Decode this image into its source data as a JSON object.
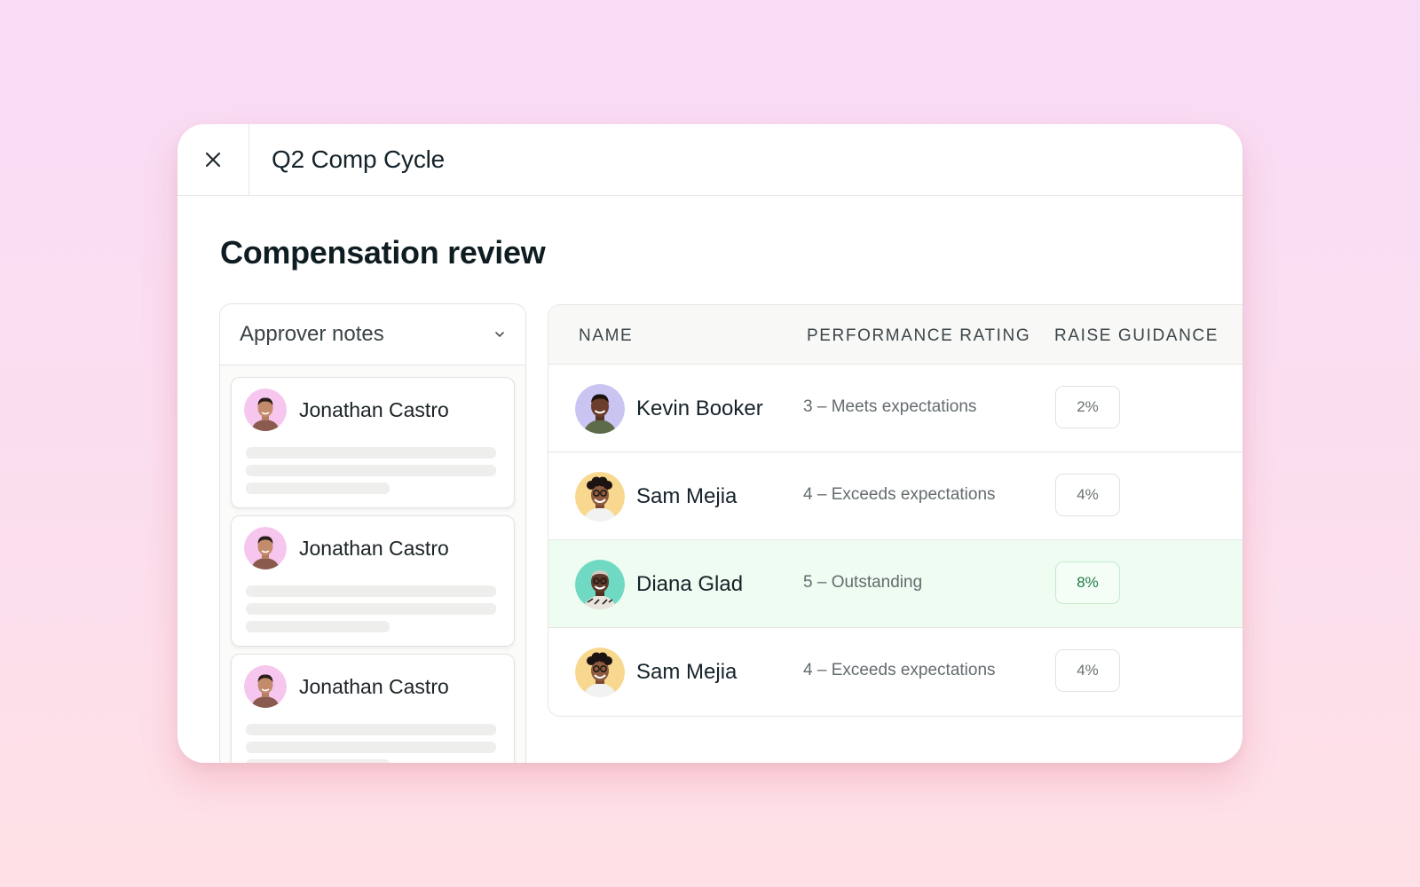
{
  "window": {
    "cycle_title": "Q2 Comp Cycle",
    "close_icon": "close-icon"
  },
  "page": {
    "title": "Compensation review"
  },
  "notes": {
    "header_label": "Approver notes",
    "header_icon": "chevron-down-icon",
    "cards": [
      {
        "author": "Jonathan Castro"
      },
      {
        "author": "Jonathan Castro"
      },
      {
        "author": "Jonathan Castro"
      }
    ]
  },
  "table": {
    "columns": [
      "NAME",
      "PERFORMANCE RATING",
      "RAISE GUIDANCE"
    ],
    "rows": [
      {
        "name": "Kevin Booker",
        "rating": "3 – Meets expectations",
        "raise": "2%"
      },
      {
        "name": "Sam Mejia",
        "rating": "4 – Exceeds expectations",
        "raise": "4%"
      },
      {
        "name": "Diana Glad",
        "rating": "5 – Outstanding",
        "raise": "8%"
      },
      {
        "name": "Sam Mejia",
        "rating": "4 – Exceeds expectations",
        "raise": "4%"
      }
    ]
  },
  "colors": {
    "highlight_row": "#eefcf1",
    "highlight_badge_text": "#1f7a47",
    "background_top": "#f8dcf6",
    "background_bottom": "#ffe0e6"
  }
}
